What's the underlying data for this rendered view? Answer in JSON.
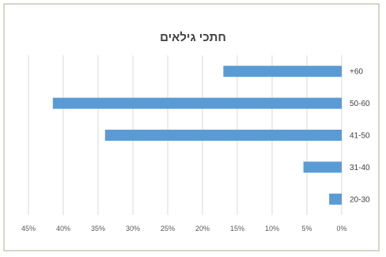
{
  "chart_data": {
    "type": "bar",
    "orientation": "horizontal",
    "x_direction": "reversed",
    "title": "חתכי גילאים",
    "categories": [
      "+60",
      "50-60",
      "41-50",
      "31-40",
      "20-30"
    ],
    "values": [
      17,
      41.5,
      34,
      5.5,
      1.8
    ],
    "xlim": [
      0,
      45
    ],
    "x_ticks": [
      {
        "value": 45,
        "label": "45%"
      },
      {
        "value": 40,
        "label": "40%"
      },
      {
        "value": 35,
        "label": "35%"
      },
      {
        "value": 30,
        "label": "30%"
      },
      {
        "value": 25,
        "label": "25%"
      },
      {
        "value": 20,
        "label": "20%"
      },
      {
        "value": 15,
        "label": "15%"
      },
      {
        "value": 10,
        "label": "10%"
      },
      {
        "value": 5,
        "label": "5%"
      },
      {
        "value": 0,
        "label": "0%"
      }
    ],
    "grid": "vertical",
    "legend": "none",
    "bar_color": "#5b9bd5",
    "grid_color": "#d9d9d9"
  }
}
